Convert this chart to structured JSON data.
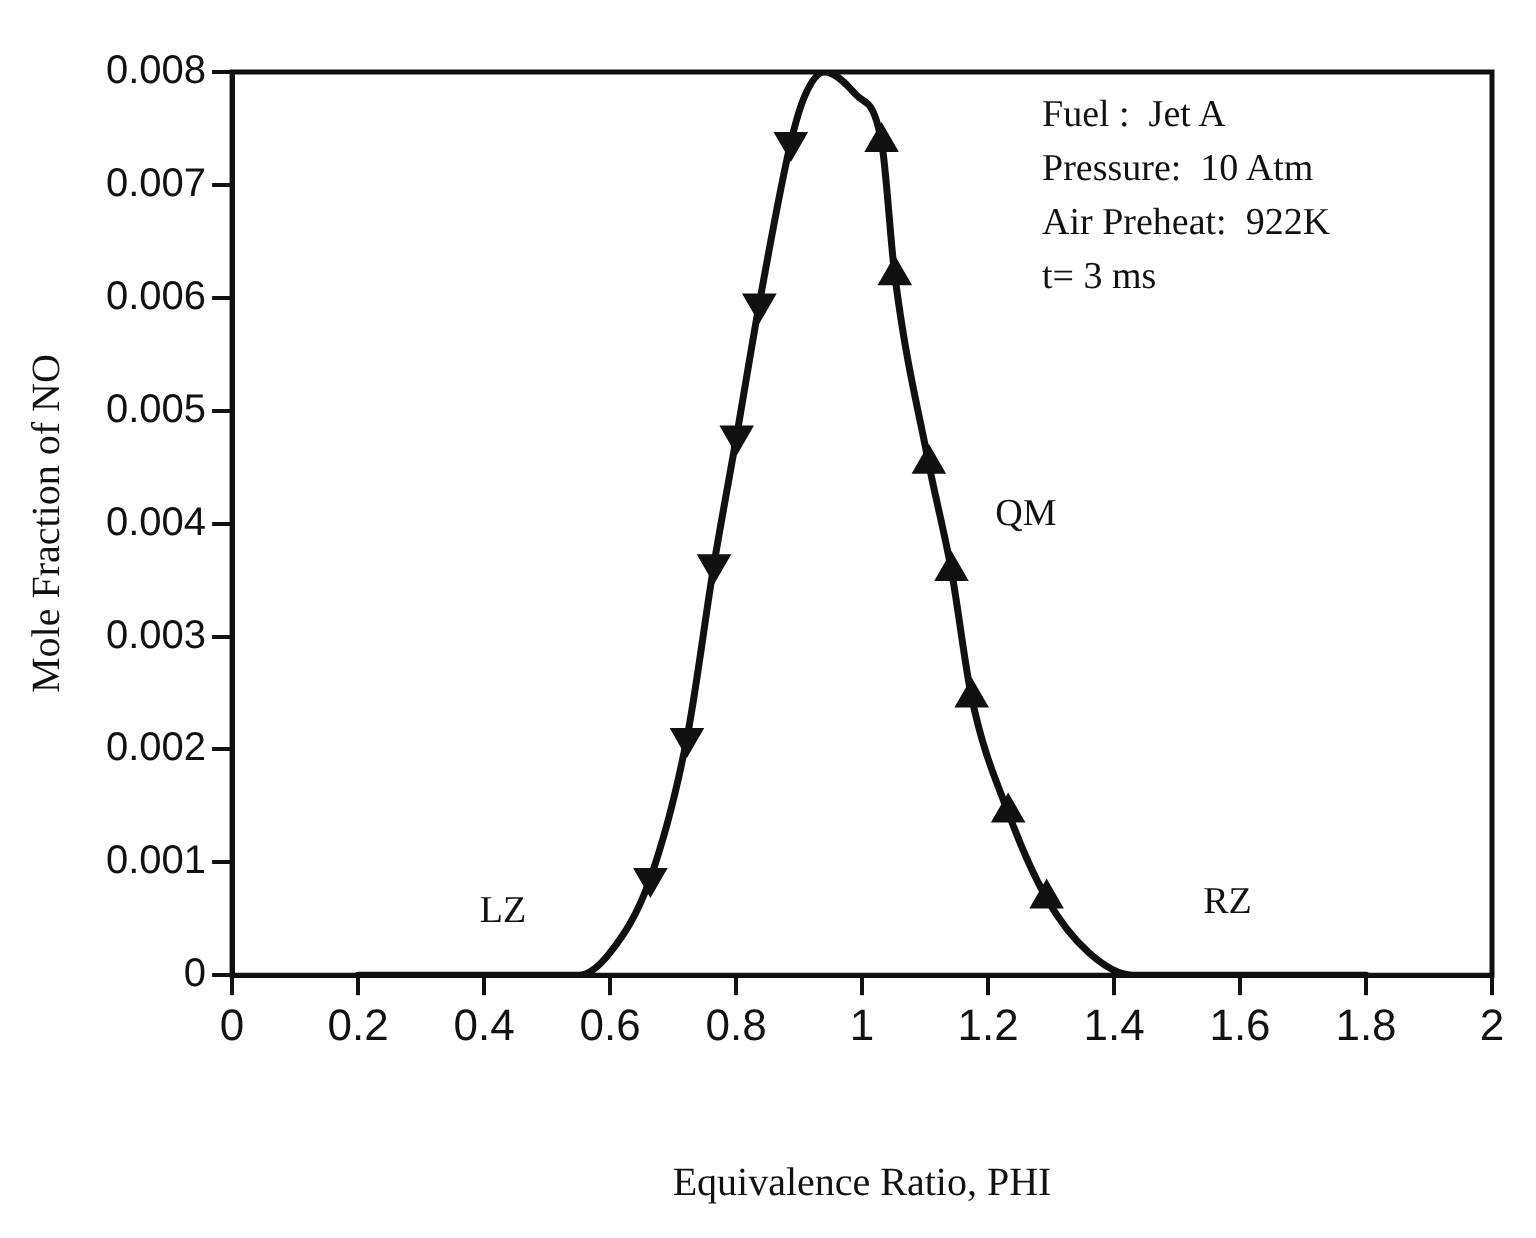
{
  "chart_data": {
    "type": "line",
    "xlabel": "Equivalence Ratio, PHI",
    "ylabel": "Mole Fraction of NO",
    "xlim": [
      0,
      2
    ],
    "xticks": [
      0,
      0.2,
      0.4,
      0.6,
      0.8,
      1,
      1.2,
      1.4,
      1.6,
      1.8,
      2
    ],
    "ylim": [
      0,
      0.008
    ],
    "yticks": [
      0,
      0.001,
      0.002,
      0.003,
      0.004,
      0.005,
      0.006,
      0.007,
      0.008
    ],
    "grid": false,
    "legend": false,
    "series": [
      {
        "color": "#111111",
        "marker": "none",
        "x": [
          0.2,
          0.55,
          0.6,
          0.664,
          0.722,
          0.765,
          0.801,
          0.837,
          0.887,
          0.91,
          0.94,
          0.99,
          1.031,
          1.052,
          1.106,
          1.142,
          1.174,
          1.232,
          1.293,
          1.36,
          1.43,
          1.8
        ],
        "values": [
          0,
          0,
          0.0002,
          0.00086,
          0.0021,
          0.00364,
          0.00478,
          0.00595,
          0.00738,
          0.0078,
          0.008,
          0.0078,
          0.00738,
          0.0062,
          0.00453,
          0.00358,
          0.00246,
          0.00144,
          0.00068,
          0.0002,
          0,
          0
        ]
      },
      {
        "type": "scatter",
        "marker": "triangle",
        "color": "#111111",
        "x": [
          0.664,
          0.722,
          0.765,
          0.801,
          0.837,
          0.887
        ],
        "values": [
          0.00086,
          0.0021,
          0.00364,
          0.00478,
          0.00595,
          0.00738
        ]
      },
      {
        "type": "scatter",
        "marker": "triangle",
        "color": "#111111",
        "x": [
          1.031,
          1.052,
          1.106,
          1.142,
          1.174,
          1.232,
          1.293
        ],
        "values": [
          0.00738,
          0.0062,
          0.00453,
          0.00358,
          0.00246,
          0.00144,
          0.00068
        ]
      }
    ],
    "annotations": [
      "Fuel :  Jet A",
      "Pressure:  10 Atm",
      "Air Preheat:  922K",
      "t= 3 ms",
      "LZ",
      "QM",
      "RZ"
    ]
  }
}
